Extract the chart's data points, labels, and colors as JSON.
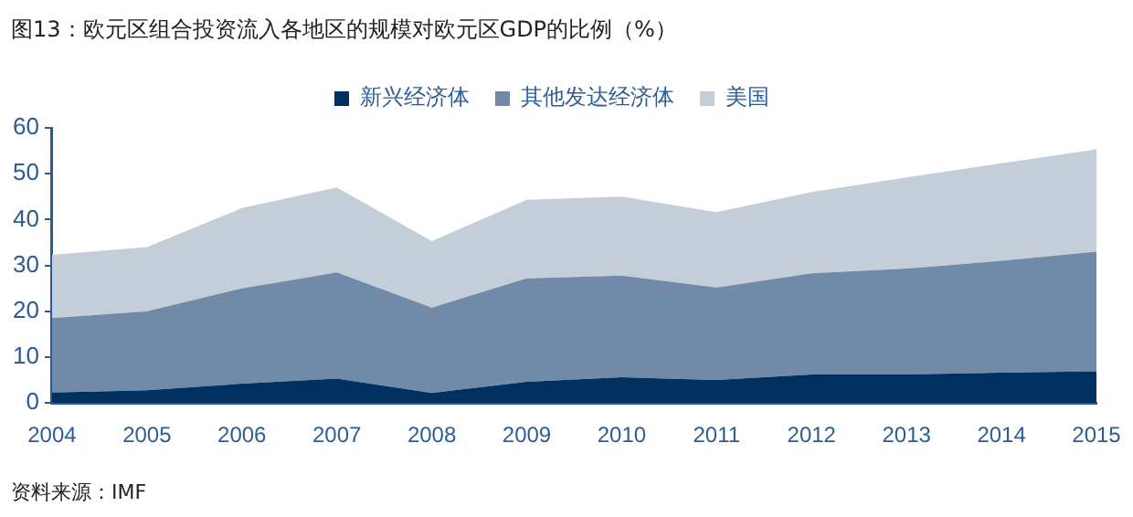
{
  "chart_data": {
    "type": "area",
    "title": "图13：欧元区组合投资流入各地区的规模对欧元区GDP的比例（%）",
    "stacked": true,
    "categories": [
      "2004",
      "2005",
      "2006",
      "2007",
      "2008",
      "2009",
      "2010",
      "2011",
      "2012",
      "2013",
      "2014",
      "2015"
    ],
    "series": [
      {
        "name": "新兴经济体",
        "color": "#00305f",
        "values": [
          2.3,
          2.8,
          4.2,
          5.3,
          2.2,
          4.6,
          5.6,
          5.0,
          6.2,
          6.2,
          6.6,
          6.9
        ]
      },
      {
        "name": "其他发达经济体",
        "color": "#718aa7",
        "values": [
          16.2,
          17.2,
          20.8,
          23.2,
          18.6,
          22.6,
          22.2,
          20.2,
          22.1,
          23.1,
          24.4,
          26.1
        ]
      },
      {
        "name": "美国",
        "color": "#c4ced9",
        "values": [
          13.8,
          14.0,
          17.5,
          18.5,
          14.5,
          17.1,
          17.2,
          16.4,
          17.7,
          19.9,
          21.3,
          22.3
        ]
      }
    ],
    "ylim": [
      0,
      60
    ],
    "yticks": [
      0,
      10,
      20,
      30,
      40,
      50,
      60
    ],
    "grid": false,
    "legend": "top",
    "annotations": [
      "资料来源：IMF"
    ]
  }
}
